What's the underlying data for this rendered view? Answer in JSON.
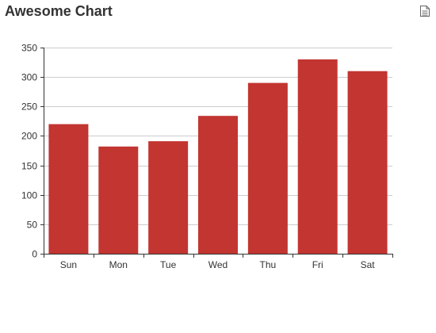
{
  "chart_data": {
    "type": "bar",
    "title": "Awesome Chart",
    "categories": [
      "Sun",
      "Mon",
      "Tue",
      "Wed",
      "Thu",
      "Fri",
      "Sat"
    ],
    "values": [
      220,
      182,
      191,
      234,
      290,
      330,
      310
    ],
    "xlabel": "",
    "ylabel": "",
    "ylim": [
      0,
      350
    ],
    "yticks": [
      0,
      50,
      100,
      150,
      200,
      250,
      300,
      350
    ],
    "grid": true,
    "bar_color": "#c23531",
    "grid_color": "#cccccc",
    "axis_color": "#333333"
  },
  "toolbox": {
    "icon": "save-image-icon"
  }
}
